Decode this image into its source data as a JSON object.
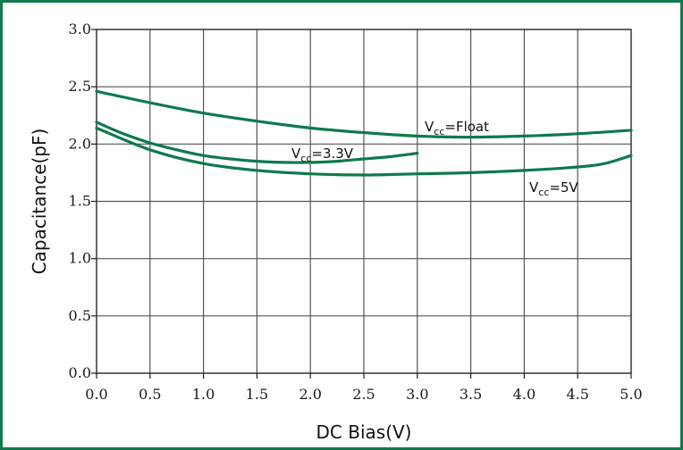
{
  "chart_data": {
    "type": "line",
    "xlabel": "DC Bias(V)",
    "ylabel": "Capacitance(pF)",
    "xlim": [
      0.0,
      5.0
    ],
    "ylim": [
      0.0,
      3.0
    ],
    "x_ticks": [
      "0.0",
      "0.5",
      "1.0",
      "1.5",
      "2.0",
      "2.5",
      "3.0",
      "3.5",
      "4.0",
      "4.5",
      "5.0"
    ],
    "y_ticks": [
      "0.0",
      "0.5",
      "1.0",
      "1.5",
      "2.0",
      "2.5",
      "3.0"
    ],
    "grid": true,
    "line_color": "#0e7a4e",
    "frame_color": "#0e7a4e",
    "series": [
      {
        "name": "Vcc=Float",
        "label": {
          "main": "V",
          "sub": "cc",
          "rest": "=Float"
        },
        "x": [
          0.0,
          0.5,
          1.0,
          1.5,
          2.0,
          2.5,
          3.0,
          3.5,
          4.0,
          4.5,
          5.0
        ],
        "y": [
          2.46,
          2.36,
          2.27,
          2.2,
          2.14,
          2.1,
          2.07,
          2.06,
          2.07,
          2.09,
          2.12
        ]
      },
      {
        "name": "Vcc=3.3V",
        "label": {
          "main": "V",
          "sub": "cc",
          "rest": "=3.3V"
        },
        "x": [
          0.0,
          0.25,
          0.5,
          0.75,
          1.0,
          1.25,
          1.5,
          1.75,
          2.0,
          2.25,
          2.5,
          2.75,
          3.0
        ],
        "y": [
          2.19,
          2.09,
          2.01,
          1.95,
          1.9,
          1.87,
          1.85,
          1.84,
          1.84,
          1.85,
          1.87,
          1.89,
          1.92
        ]
      },
      {
        "name": "Vcc=5V",
        "label": {
          "main": "V",
          "sub": "cc",
          "rest": "=5V"
        },
        "x": [
          0.0,
          0.5,
          1.0,
          1.5,
          2.0,
          2.5,
          3.0,
          3.5,
          4.0,
          4.5,
          4.75,
          5.0
        ],
        "y": [
          2.14,
          1.95,
          1.83,
          1.77,
          1.74,
          1.73,
          1.74,
          1.75,
          1.77,
          1.8,
          1.83,
          1.9
        ]
      }
    ]
  }
}
